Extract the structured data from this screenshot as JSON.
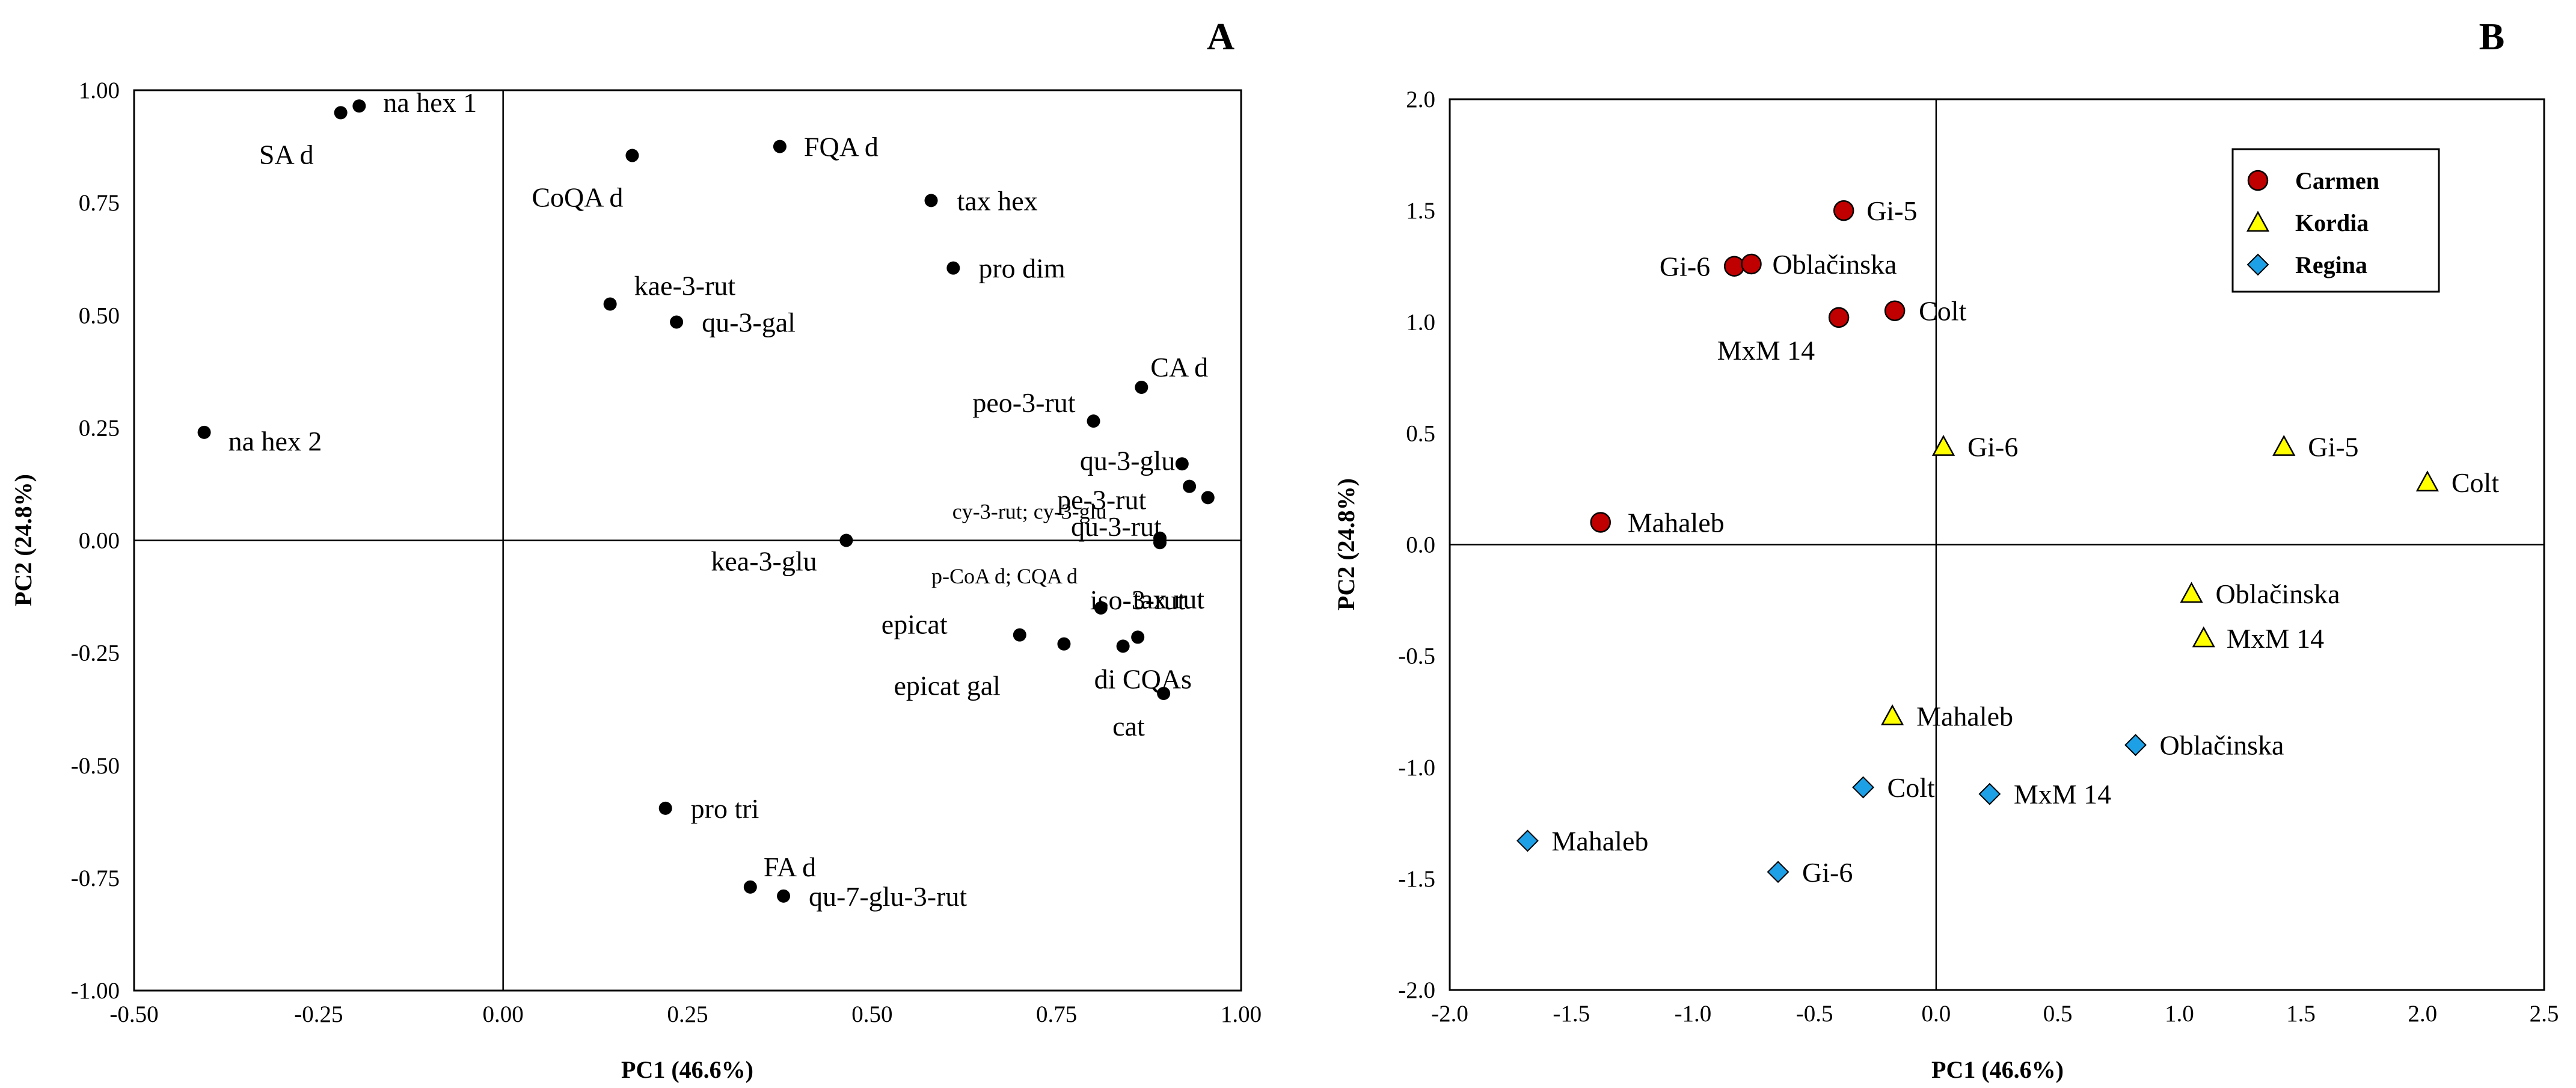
{
  "chart_data": [
    {
      "type": "scatter",
      "panel_label": "A",
      "title": "",
      "xlabel": "PC1 (46.6%)",
      "ylabel": "PC2 (24.8%)",
      "xlim": [
        -0.5,
        1.0
      ],
      "ylim": [
        -1.0,
        1.0
      ],
      "xticks": [
        "-0.50",
        "-0.25",
        "0.00",
        "0.25",
        "0.50",
        "0.75",
        "1.00"
      ],
      "yticks": [
        "1.00",
        "0.75",
        "0.50",
        "0.25",
        "0.00",
        "-0.25",
        "-0.50",
        "-0.75",
        "-1.00"
      ],
      "marker_color": "#000000",
      "points": [
        {
          "label": "na hex 1",
          "x": -0.195,
          "y": 0.965
        },
        {
          "label": "SA d",
          "x": -0.22,
          "y": 0.95
        },
        {
          "label": "CoQA d",
          "x": 0.175,
          "y": 0.855
        },
        {
          "label": "FQA d",
          "x": 0.375,
          "y": 0.875
        },
        {
          "label": "tax hex",
          "x": 0.58,
          "y": 0.755
        },
        {
          "label": "pro dim",
          "x": 0.61,
          "y": 0.605
        },
        {
          "label": "kae-3-rut",
          "x": 0.145,
          "y": 0.525
        },
        {
          "label": "qu-3-gal",
          "x": 0.235,
          "y": 0.485
        },
        {
          "label": "na hex 2",
          "x": -0.405,
          "y": 0.24
        },
        {
          "label": "CA d",
          "x": 0.865,
          "y": 0.34
        },
        {
          "label": "peo-3-rut",
          "x": 0.8,
          "y": 0.265
        },
        {
          "label": "qu-3-glu",
          "x": 0.92,
          "y": 0.17
        },
        {
          "label": "pe-3-rut",
          "x": 0.93,
          "y": 0.12
        },
        {
          "label": "cy-3-rut; cy-3-glu",
          "x": 0.955,
          "y": 0.095
        },
        {
          "label": "qu-3-rut",
          "x": 0.89,
          "y": 0.005
        },
        {
          "label": "p-CoA d; CQA d",
          "x": 0.89,
          "y": -0.005
        },
        {
          "label": "kea-3-glu",
          "x": 0.465,
          "y": 0.0
        },
        {
          "label": "iso-3-rut",
          "x": 0.81,
          "y": -0.15
        },
        {
          "label": "tax rut",
          "x": 0.86,
          "y": -0.215
        },
        {
          "label": "epicat",
          "x": 0.7,
          "y": -0.21
        },
        {
          "label": "epicat gal",
          "x": 0.76,
          "y": -0.23
        },
        {
          "label": "di CQAs",
          "x": 0.84,
          "y": -0.235
        },
        {
          "label": "cat",
          "x": 0.895,
          "y": -0.34
        },
        {
          "label": "pro tri",
          "x": 0.22,
          "y": -0.595
        },
        {
          "label": "FA d",
          "x": 0.335,
          "y": -0.77
        },
        {
          "label": "qu-7-glu-3-rut",
          "x": 0.38,
          "y": -0.79
        }
      ]
    },
    {
      "type": "scatter",
      "panel_label": "B",
      "title": "",
      "xlabel": "PC1 (46.6%)",
      "ylabel": "PC2 (24.8%)",
      "xlim": [
        -2.0,
        2.5
      ],
      "ylim": [
        -2.0,
        2.0
      ],
      "xticks": [
        "-2.0",
        "-1.5",
        "-1.0",
        "-0.5",
        "0.0",
        "0.5",
        "1.0",
        "1.5",
        "2.0",
        "2.5"
      ],
      "yticks": [
        "2.0",
        "1.5",
        "1.0",
        "0.5",
        "0.0",
        "-0.5",
        "-1.0",
        "-1.5",
        "-2.0"
      ],
      "legend_position": "top-right",
      "series": [
        {
          "name": "Carmen",
          "marker": "circle",
          "color": "#c00000",
          "points": [
            {
              "label": "Gi-5",
              "x": -0.38,
              "y": 1.5
            },
            {
              "label": "Gi-6",
              "x": -0.83,
              "y": 1.25
            },
            {
              "label": "Oblačinska",
              "x": -0.76,
              "y": 1.26
            },
            {
              "label": "Colt",
              "x": -0.17,
              "y": 1.05
            },
            {
              "label": "MxM 14",
              "x": -0.4,
              "y": 1.02
            },
            {
              "label": "Mahaleb",
              "x": -1.38,
              "y": 0.1
            }
          ]
        },
        {
          "name": "Kordia",
          "marker": "triangle",
          "color": "#ffff00",
          "points": [
            {
              "label": "Gi-6",
              "x": 0.03,
              "y": 0.44
            },
            {
              "label": "Gi-5",
              "x": 1.43,
              "y": 0.44
            },
            {
              "label": "Colt",
              "x": 2.02,
              "y": 0.28
            },
            {
              "label": "Oblačinska",
              "x": 1.05,
              "y": -0.22
            },
            {
              "label": "MxM 14",
              "x": 1.1,
              "y": -0.42
            },
            {
              "label": "Mahaleb",
              "x": -0.18,
              "y": -0.77
            }
          ]
        },
        {
          "name": "Regina",
          "marker": "diamond",
          "color": "#1ea0e6",
          "points": [
            {
              "label": "Oblačinska",
              "x": 0.82,
              "y": -0.9
            },
            {
              "label": "Colt",
              "x": -0.3,
              "y": -1.09
            },
            {
              "label": "MxM 14",
              "x": 0.22,
              "y": -1.12
            },
            {
              "label": "Mahaleb",
              "x": -1.68,
              "y": -1.33
            },
            {
              "label": "Gi-6",
              "x": -0.65,
              "y": -1.47
            }
          ]
        }
      ]
    }
  ]
}
